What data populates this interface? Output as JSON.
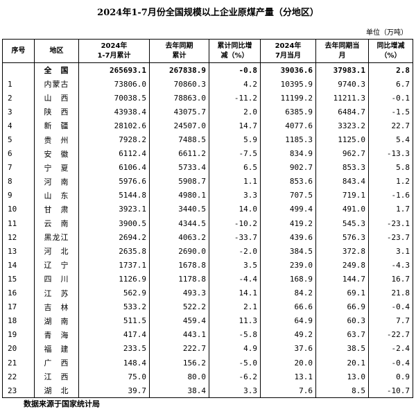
{
  "title": "2024年1-7月份全国规模以上企业原煤产量（分地区）",
  "unit": "单位（万吨）",
  "headers": {
    "index": "序号",
    "region": "地区",
    "cum2024": [
      "2024年",
      "1-7月累计"
    ],
    "cum_last": [
      "去年同期",
      "累计"
    ],
    "cum_yoy": [
      "累计同比增",
      "减（%）"
    ],
    "month2024": [
      "2024年",
      "7月当月"
    ],
    "month_last": [
      "去年同期当",
      "月"
    ],
    "month_yoy": [
      "同比增减",
      "（%）"
    ]
  },
  "total": {
    "index": "",
    "region": "全　国",
    "cum2024": "265693.1",
    "cum_last": "267838.9",
    "cum_yoy": "-0.8",
    "month2024": "39036.6",
    "month_last": "37983.1",
    "month_yoy": "2.8"
  },
  "rows": [
    {
      "index": "1",
      "region": "内蒙古",
      "cum2024": "73806.0",
      "cum_last": "70860.3",
      "cum_yoy": "4.2",
      "month2024": "10395.9",
      "month_last": "9740.3",
      "month_yoy": "6.7"
    },
    {
      "index": "2",
      "region": "山　西",
      "cum2024": "70038.5",
      "cum_last": "78863.0",
      "cum_yoy": "-11.2",
      "month2024": "11199.2",
      "month_last": "11211.3",
      "month_yoy": "-0.1"
    },
    {
      "index": "3",
      "region": "陕　西",
      "cum2024": "43938.4",
      "cum_last": "43075.7",
      "cum_yoy": "2.0",
      "month2024": "6385.9",
      "month_last": "6484.7",
      "month_yoy": "-1.5"
    },
    {
      "index": "4",
      "region": "新　疆",
      "cum2024": "28102.6",
      "cum_last": "24507.0",
      "cum_yoy": "14.7",
      "month2024": "4077.6",
      "month_last": "3323.2",
      "month_yoy": "22.7"
    },
    {
      "index": "5",
      "region": "贵　州",
      "cum2024": "7928.2",
      "cum_last": "7488.5",
      "cum_yoy": "5.9",
      "month2024": "1185.3",
      "month_last": "1125.0",
      "month_yoy": "5.4"
    },
    {
      "index": "6",
      "region": "安　徽",
      "cum2024": "6112.4",
      "cum_last": "6611.2",
      "cum_yoy": "-7.5",
      "month2024": "834.9",
      "month_last": "962.7",
      "month_yoy": "-13.3"
    },
    {
      "index": "7",
      "region": "宁　夏",
      "cum2024": "6106.4",
      "cum_last": "5733.4",
      "cum_yoy": "6.5",
      "month2024": "902.7",
      "month_last": "853.3",
      "month_yoy": "5.8"
    },
    {
      "index": "8",
      "region": "河　南",
      "cum2024": "5976.6",
      "cum_last": "5908.7",
      "cum_yoy": "1.1",
      "month2024": "853.6",
      "month_last": "843.4",
      "month_yoy": "1.2"
    },
    {
      "index": "9",
      "region": "山　东",
      "cum2024": "5144.8",
      "cum_last": "4980.1",
      "cum_yoy": "3.3",
      "month2024": "707.5",
      "month_last": "719.1",
      "month_yoy": "-1.6"
    },
    {
      "index": "10",
      "region": "甘　肃",
      "cum2024": "3923.1",
      "cum_last": "3440.5",
      "cum_yoy": "14.0",
      "month2024": "499.4",
      "month_last": "491.0",
      "month_yoy": "1.7"
    },
    {
      "index": "11",
      "region": "云　南",
      "cum2024": "3900.5",
      "cum_last": "4344.5",
      "cum_yoy": "-10.2",
      "month2024": "419.2",
      "month_last": "545.3",
      "month_yoy": "-23.1"
    },
    {
      "index": "12",
      "region": "黑龙江",
      "cum2024": "2694.2",
      "cum_last": "4063.2",
      "cum_yoy": "-33.7",
      "month2024": "439.6",
      "month_last": "576.3",
      "month_yoy": "-23.7"
    },
    {
      "index": "13",
      "region": "河　北",
      "cum2024": "2635.8",
      "cum_last": "2690.0",
      "cum_yoy": "-2.0",
      "month2024": "384.5",
      "month_last": "372.8",
      "month_yoy": "3.1"
    },
    {
      "index": "14",
      "region": "辽　宁",
      "cum2024": "1737.1",
      "cum_last": "1678.8",
      "cum_yoy": "3.5",
      "month2024": "239.0",
      "month_last": "249.8",
      "month_yoy": "-4.3"
    },
    {
      "index": "15",
      "region": "四　川",
      "cum2024": "1126.9",
      "cum_last": "1178.8",
      "cum_yoy": "-4.4",
      "month2024": "168.9",
      "month_last": "144.7",
      "month_yoy": "16.7"
    },
    {
      "index": "16",
      "region": "江　苏",
      "cum2024": "562.9",
      "cum_last": "493.3",
      "cum_yoy": "14.1",
      "month2024": "84.2",
      "month_last": "69.1",
      "month_yoy": "21.8"
    },
    {
      "index": "17",
      "region": "吉　林",
      "cum2024": "533.2",
      "cum_last": "522.2",
      "cum_yoy": "2.1",
      "month2024": "66.6",
      "month_last": "66.9",
      "month_yoy": "-0.4"
    },
    {
      "index": "18",
      "region": "湖　南",
      "cum2024": "511.5",
      "cum_last": "459.4",
      "cum_yoy": "11.3",
      "month2024": "64.9",
      "month_last": "60.3",
      "month_yoy": "7.7"
    },
    {
      "index": "19",
      "region": "青　海",
      "cum2024": "417.4",
      "cum_last": "443.1",
      "cum_yoy": "-5.8",
      "month2024": "49.2",
      "month_last": "63.7",
      "month_yoy": "-22.7"
    },
    {
      "index": "20",
      "region": "福　建",
      "cum2024": "233.5",
      "cum_last": "222.7",
      "cum_yoy": "4.9",
      "month2024": "37.6",
      "month_last": "38.5",
      "month_yoy": "-2.4"
    },
    {
      "index": "21",
      "region": "广　西",
      "cum2024": "148.4",
      "cum_last": "156.2",
      "cum_yoy": "-5.0",
      "month2024": "20.0",
      "month_last": "20.1",
      "month_yoy": "-0.4"
    },
    {
      "index": "22",
      "region": "江　西",
      "cum2024": "75.0",
      "cum_last": "80.0",
      "cum_yoy": "-6.2",
      "month2024": "13.1",
      "month_last": "13.0",
      "month_yoy": "0.9"
    },
    {
      "index": "23",
      "region": "湖　北",
      "cum2024": "39.7",
      "cum_last": "38.4",
      "cum_yoy": "3.3",
      "month2024": "7.6",
      "month_last": "8.5",
      "month_yoy": "-10.7"
    }
  ],
  "source": "数据来源于国家统计局"
}
